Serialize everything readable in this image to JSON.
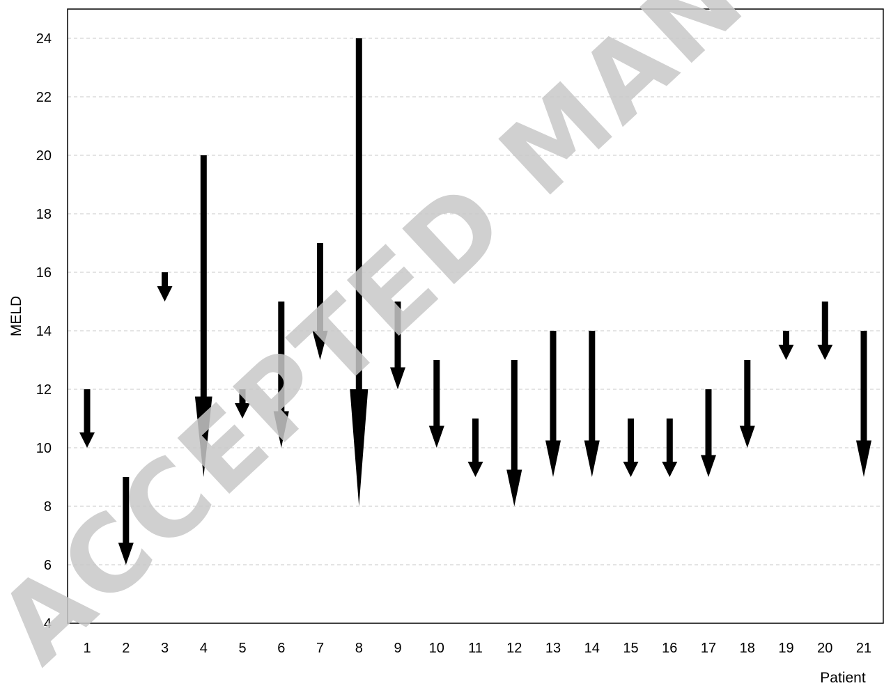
{
  "chart_data": {
    "type": "arrow-change",
    "xlabel": "Patient",
    "ylabel": "MELD",
    "ylim": [
      4,
      25
    ],
    "yticks": [
      4,
      6,
      8,
      10,
      12,
      14,
      16,
      18,
      20,
      22,
      24
    ],
    "grid": true,
    "categories": [
      "1",
      "2",
      "3",
      "4",
      "5",
      "6",
      "7",
      "8",
      "9",
      "10",
      "11",
      "12",
      "13",
      "14",
      "15",
      "16",
      "17",
      "18",
      "19",
      "20",
      "21"
    ],
    "series": [
      {
        "start": [
          12,
          9,
          16,
          20,
          12,
          15,
          17,
          24,
          15,
          13,
          11,
          13,
          14,
          14,
          11,
          11,
          12,
          13,
          14,
          15,
          14
        ],
        "end": [
          10,
          6,
          15,
          9,
          11,
          10,
          13,
          8,
          12,
          10,
          9,
          8,
          9,
          9,
          9,
          9,
          9,
          10,
          13,
          13,
          9
        ]
      }
    ],
    "colors": {
      "arrow": "#000000",
      "grid": "#c8c8c8",
      "watermark": "#c8c8c8"
    }
  },
  "watermark": {
    "text": "ACCEPTED MANUSCRIPT"
  }
}
